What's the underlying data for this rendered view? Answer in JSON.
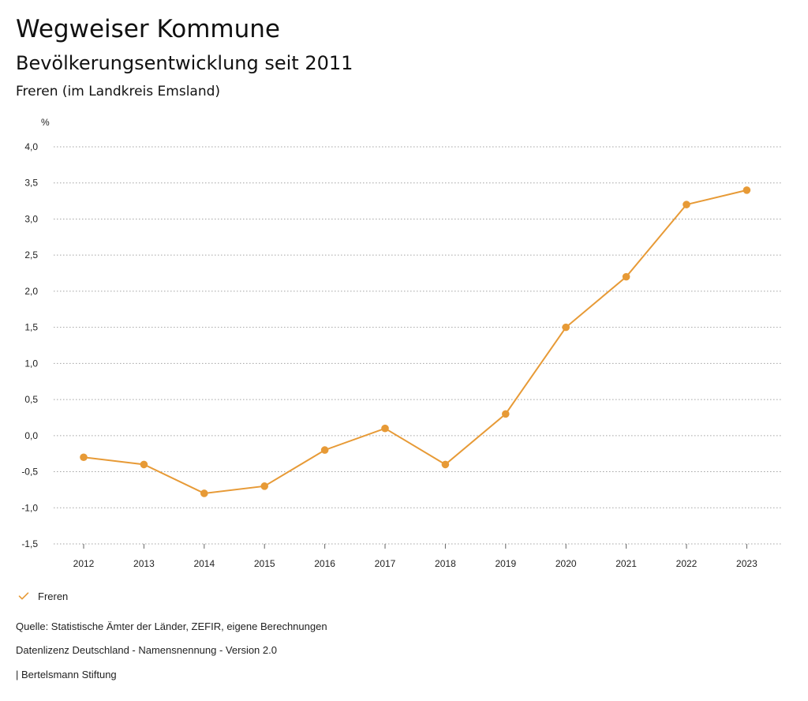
{
  "header": {
    "title": "Wegweiser Kommune",
    "subtitle": "Bevölkerungsentwicklung seit 2011",
    "region": "Freren (im Landkreis Emsland)"
  },
  "legend": {
    "label": "Freren",
    "icon": "check-icon"
  },
  "footer": {
    "source": "Quelle: Statistische Ämter der Länder, ZEFIR, eigene Berechnungen",
    "license": "Datenlizenz Deutschland - Namensnennung - Version 2.0",
    "publisher": "| Bertelsmann Stiftung"
  },
  "chart_data": {
    "type": "line",
    "title": "Bevölkerungsentwicklung seit 2011",
    "subtitle": "Freren (im Landkreis Emsland)",
    "xlabel": "",
    "ylabel": "%",
    "x": [
      "2012",
      "2013",
      "2014",
      "2015",
      "2016",
      "2017",
      "2018",
      "2019",
      "2020",
      "2021",
      "2022",
      "2023"
    ],
    "series": [
      {
        "name": "Freren",
        "values": [
          -0.3,
          -0.4,
          -0.8,
          -0.7,
          -0.2,
          0.1,
          -0.4,
          0.3,
          1.5,
          2.2,
          3.2,
          3.4
        ],
        "color": "#e79a36"
      }
    ],
    "yticks": [
      "4,0",
      "3,5",
      "3,0",
      "2,5",
      "2,0",
      "1,5",
      "1,0",
      "0,5",
      "0,0",
      "-0,5",
      "-1,0",
      "-1,5"
    ],
    "ylim": [
      -1.5,
      4.0
    ],
    "grid": true,
    "legend_position": "bottom-left"
  }
}
